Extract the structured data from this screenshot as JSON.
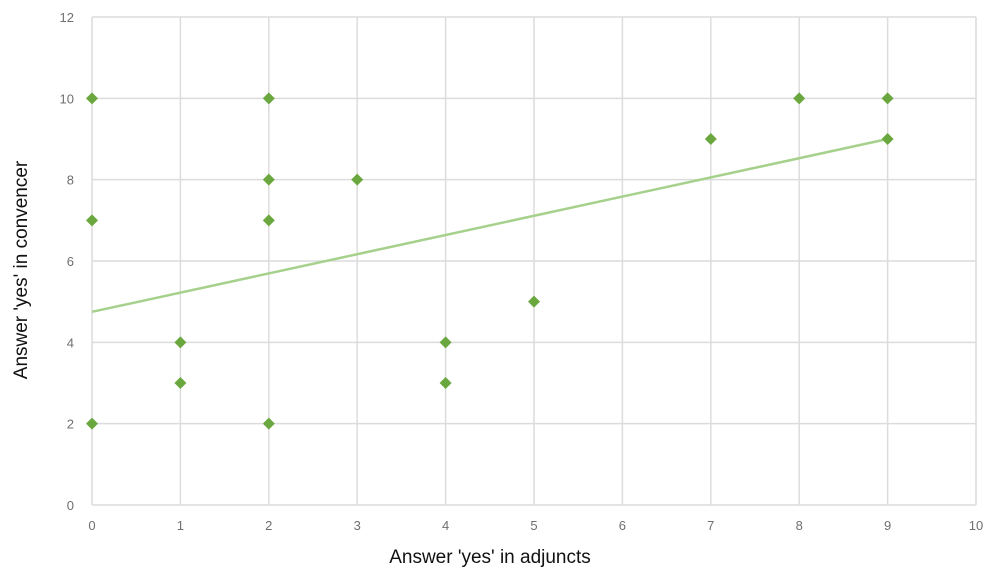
{
  "chart_data": {
    "type": "scatter",
    "xlabel": "Answer 'yes' in adjuncts",
    "ylabel": "Answer 'yes' in convencer",
    "xlim": [
      0,
      10
    ],
    "ylim": [
      0,
      12
    ],
    "x_ticks": [
      "0",
      "1",
      "2",
      "3",
      "4",
      "5",
      "6",
      "7",
      "8",
      "9",
      "10"
    ],
    "y_ticks": [
      "0",
      "2",
      "4",
      "6",
      "8",
      "10",
      "12"
    ],
    "grid": true,
    "series": [
      {
        "points": [
          {
            "x": 0,
            "y": 10
          },
          {
            "x": 0,
            "y": 7
          },
          {
            "x": 0,
            "y": 2
          },
          {
            "x": 1,
            "y": 4
          },
          {
            "x": 1,
            "y": 3
          },
          {
            "x": 2,
            "y": 10
          },
          {
            "x": 2,
            "y": 8
          },
          {
            "x": 2,
            "y": 7
          },
          {
            "x": 2,
            "y": 2
          },
          {
            "x": 3,
            "y": 8
          },
          {
            "x": 4,
            "y": 4
          },
          {
            "x": 4,
            "y": 3
          },
          {
            "x": 5,
            "y": 5
          },
          {
            "x": 7,
            "y": 9
          },
          {
            "x": 8,
            "y": 10
          },
          {
            "x": 9,
            "y": 10
          },
          {
            "x": 9,
            "y": 9
          }
        ]
      }
    ],
    "trendline": {
      "type": "linear",
      "x_range": [
        0,
        9
      ],
      "y_at_start": 4.75,
      "y_at_end": 9.0
    },
    "colors": {
      "marker": "#6aa83f",
      "trendline": "#a6d18c",
      "grid": "#dcdcdc",
      "tick_text": "#6f6f6f",
      "axis_title": "#111111"
    }
  }
}
